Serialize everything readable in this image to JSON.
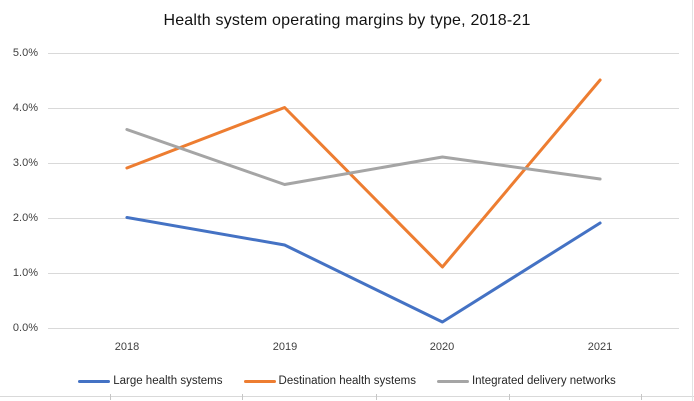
{
  "chart_data": {
    "type": "line",
    "title": "Health system operating margins by type, 2018-21",
    "categories": [
      "2018",
      "2019",
      "2020",
      "2021"
    ],
    "series": [
      {
        "name": "Large health systems",
        "color": "#4472C4",
        "values": [
          2.0,
          1.5,
          0.1,
          1.9
        ]
      },
      {
        "name": "Destination health systems",
        "color": "#ED7D31",
        "values": [
          2.9,
          4.0,
          1.1,
          4.5
        ]
      },
      {
        "name": "Integrated delivery networks",
        "color": "#A5A5A5",
        "values": [
          3.6,
          2.6,
          3.1,
          2.7
        ]
      }
    ],
    "yticks": [
      "5.0%",
      "4.0%",
      "3.0%",
      "2.0%",
      "1.0%",
      "0.0%"
    ],
    "ytick_values": [
      5.0,
      4.0,
      3.0,
      2.0,
      1.0,
      0.0
    ],
    "ylim": [
      0.0,
      5.0
    ],
    "xlabel": "",
    "ylabel": "",
    "grid": "horizontal",
    "legend_position": "bottom"
  },
  "colors": {
    "gridline": "#D9D9D9",
    "axis_text": "#404040",
    "title_text": "#111111",
    "background": "#FFFFFF"
  }
}
